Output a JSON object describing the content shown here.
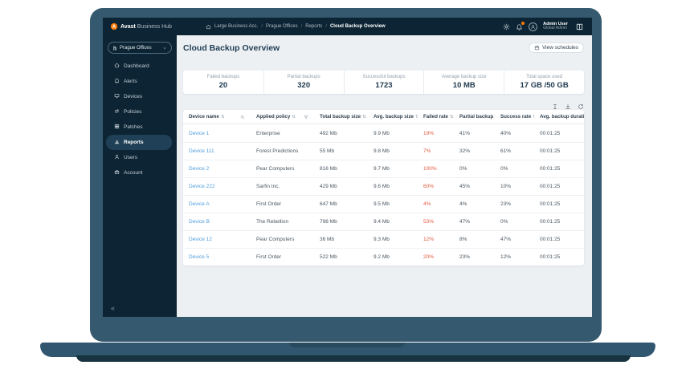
{
  "topbar": {
    "brand_bold": "Avast",
    "brand_rest": "Business Hub",
    "breadcrumb_separator": "/",
    "breadcrumbs": [
      {
        "label": "Large Business Acc.",
        "current": false
      },
      {
        "label": "Prague Offices",
        "current": false
      },
      {
        "label": "Reports",
        "current": false
      },
      {
        "label": "Cloud Backup Overview",
        "current": true
      }
    ],
    "icons": [
      "gear-icon",
      "notifications-icon",
      "knowledge-base-icon"
    ],
    "user": {
      "name": "Admin User",
      "role": "Global Admin"
    }
  },
  "sidebar": {
    "site_selector": {
      "label": "Prague Offices",
      "icon": "building"
    },
    "items": [
      {
        "label": "Dashboard",
        "icon": "home",
        "active": false
      },
      {
        "label": "Alerts",
        "icon": "bell",
        "active": false
      },
      {
        "label": "Devices",
        "icon": "monitor",
        "active": false
      },
      {
        "label": "Policies",
        "icon": "sliders",
        "active": false
      },
      {
        "label": "Patches",
        "icon": "grid",
        "active": false
      },
      {
        "label": "Reports",
        "icon": "chart",
        "active": true
      },
      {
        "label": "Users",
        "icon": "user",
        "active": false
      },
      {
        "label": "Account",
        "icon": "briefcase",
        "active": false
      }
    ],
    "collapse_glyph": "«"
  },
  "page": {
    "title": "Cloud Backup Overview",
    "view_schedules_label": "View schedules"
  },
  "stats": [
    {
      "label": "Failed backups",
      "value": "20"
    },
    {
      "label": "Partial backups",
      "value": "320"
    },
    {
      "label": "Successful backups",
      "value": "1723"
    },
    {
      "label": "Average backup size",
      "value": "10 MB"
    },
    {
      "label": "Total space used",
      "value": "17 GB /50 GB"
    }
  ],
  "table": {
    "sort_glyph": "⇅",
    "toolbar_icons": [
      "columns-icon",
      "download-icon",
      "refresh-icon"
    ],
    "columns": [
      {
        "label": "Device name",
        "extra_icon": "search"
      },
      {
        "label": "Applied policy",
        "extra_icon": "funnel"
      },
      {
        "label": "Total backup size"
      },
      {
        "label": "Avg. backup size"
      },
      {
        "label": "Failed rate"
      },
      {
        "label": "Partial backup rate"
      },
      {
        "label": "Success rate"
      },
      {
        "label": "Avg. backup duration"
      }
    ],
    "rows": [
      [
        "Device 1",
        "Enterprise",
        "492 Mb",
        "9.9 Mb",
        "19%",
        "41%",
        "40%",
        "00:01:25"
      ],
      [
        "Device 111",
        "Forest Predictions",
        "55 Mb",
        "9.8 Mb",
        "7%",
        "32%",
        "61%",
        "00:01:25"
      ],
      [
        "Device 2",
        "Pear Computers",
        "816 Mb",
        "9.7 Mb",
        "100%",
        "0%",
        "0%",
        "00:01:25"
      ],
      [
        "Device 222",
        "Sarfin Inc.",
        "429 Mb",
        "9.6 Mb",
        "60%",
        "45%",
        "10%",
        "00:01:25"
      ],
      [
        "Device A",
        "First Order",
        "647 Mb",
        "9.5 Mb",
        "4%",
        "4%",
        "23%",
        "00:01:25"
      ],
      [
        "Device B",
        "The Rebellion",
        "798 Mb",
        "9.4 Mb",
        "53%",
        "47%",
        "0%",
        "00:01:25"
      ],
      [
        "Device 12",
        "Pear Computers",
        "36 Mb",
        "9.3 Mb",
        "12%",
        "8%",
        "47%",
        "00:01:25"
      ],
      [
        "Device 5",
        "First Order",
        "522 Mb",
        "9.2 Mb",
        "20%",
        "23%",
        "12%",
        "00:01:25"
      ]
    ]
  },
  "colors": {
    "brand_orange": "#ff7800",
    "link_blue": "#4f9ddb",
    "failed_red": "#e0593f",
    "sidebar_dark": "#0c2433",
    "bezel": "#35596e"
  }
}
